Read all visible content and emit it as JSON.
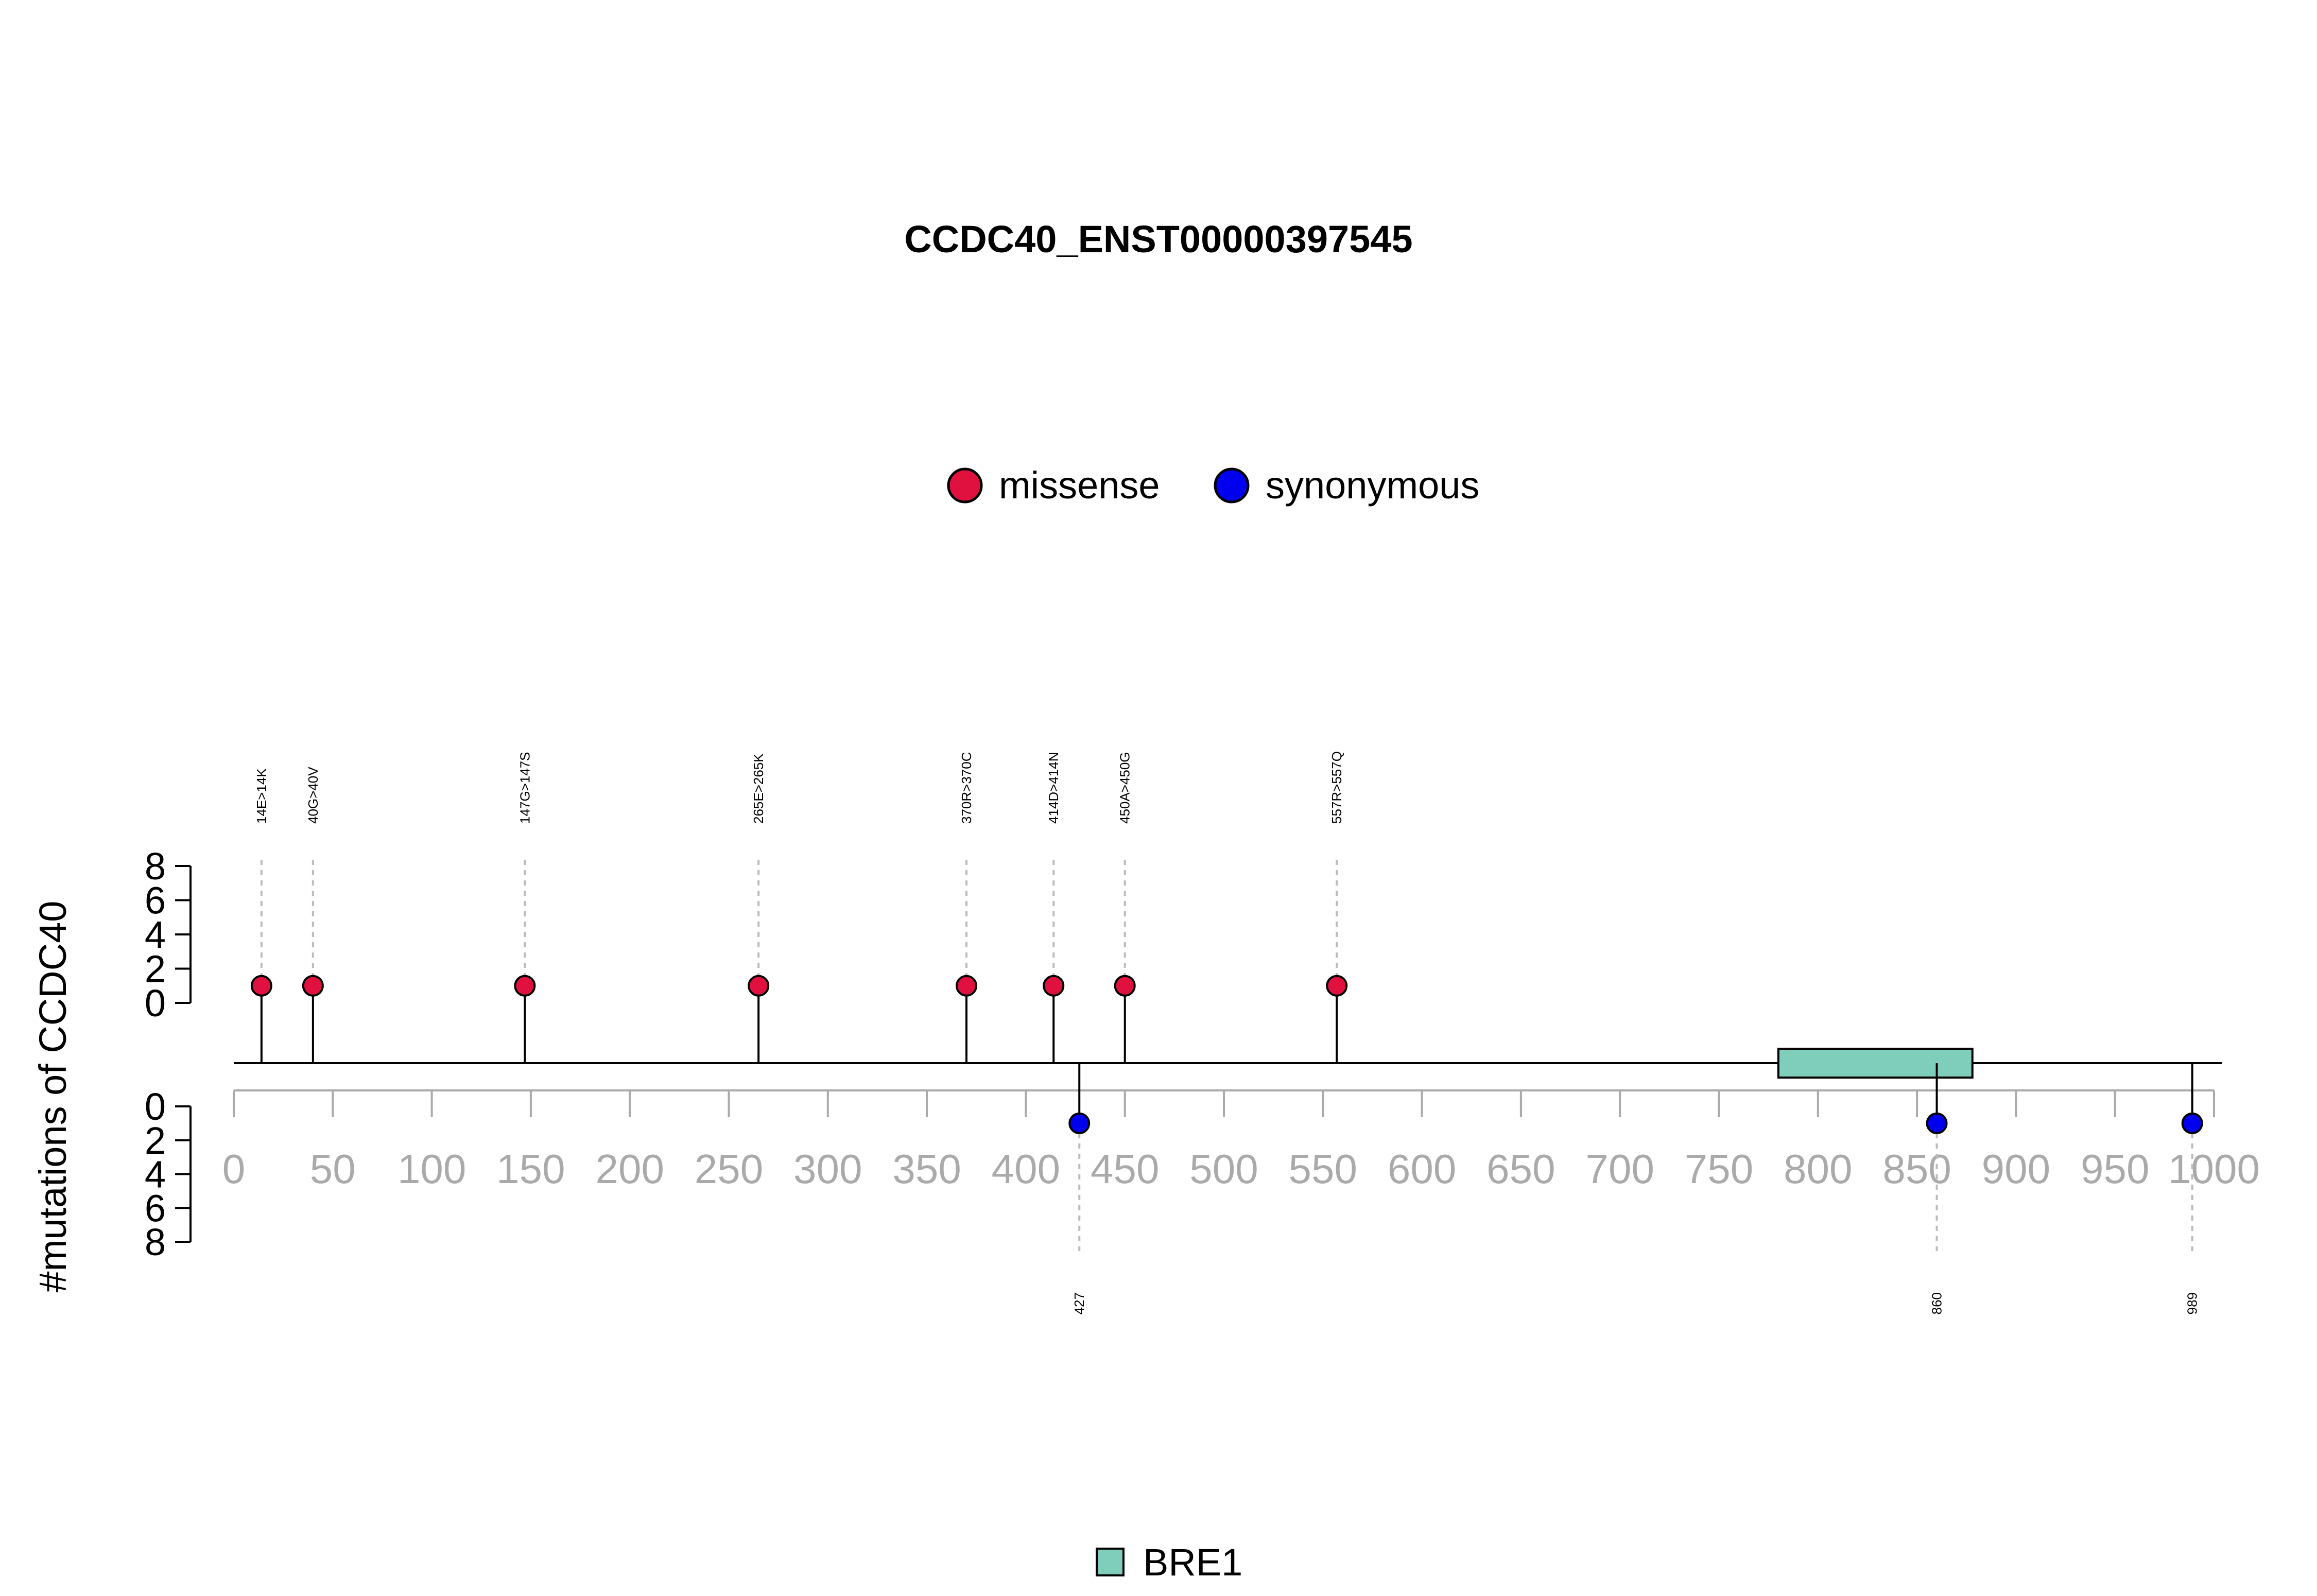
{
  "chart_data": {
    "type": "lollipop",
    "title": "CCDC40_ENST00000397545",
    "ylabel": "#mutations of CCDC40",
    "legend": [
      {
        "label": "missense",
        "color": "#e0103f"
      },
      {
        "label": "synonymous",
        "color": "#0000ee"
      }
    ],
    "x_ticks": [
      0,
      50,
      100,
      150,
      200,
      250,
      300,
      350,
      400,
      450,
      500,
      550,
      600,
      650,
      700,
      750,
      800,
      850,
      900,
      950,
      1000
    ],
    "xlim": [
      0,
      1000
    ],
    "y_ticks_upper": [
      8,
      6,
      4,
      2,
      0
    ],
    "y_ticks_lower": [
      0,
      2,
      4,
      6,
      8
    ],
    "ylim": [
      0,
      8
    ],
    "missense": [
      {
        "position": 14,
        "label": "14E>14K",
        "count": 1
      },
      {
        "position": 40,
        "label": "40G>40V",
        "count": 1
      },
      {
        "position": 147,
        "label": "147G>147S",
        "count": 1
      },
      {
        "position": 265,
        "label": "265E>265K",
        "count": 1
      },
      {
        "position": 370,
        "label": "370R>370C",
        "count": 1
      },
      {
        "position": 414,
        "label": "414D>414N",
        "count": 1
      },
      {
        "position": 450,
        "label": "450A>450G",
        "count": 1
      },
      {
        "position": 557,
        "label": "557R>557Q",
        "count": 1
      }
    ],
    "synonymous": [
      {
        "position": 427,
        "label": "427",
        "count": 1
      },
      {
        "position": 860,
        "label": "860",
        "count": 1
      },
      {
        "position": 989,
        "label": "989",
        "count": 1
      }
    ],
    "domains": [
      {
        "name": "BRE1",
        "start": 780,
        "end": 878,
        "color": "#7fcdbb"
      }
    ],
    "domain_legend": [
      {
        "label": "BRE1",
        "color": "#7fcdbb"
      }
    ]
  }
}
